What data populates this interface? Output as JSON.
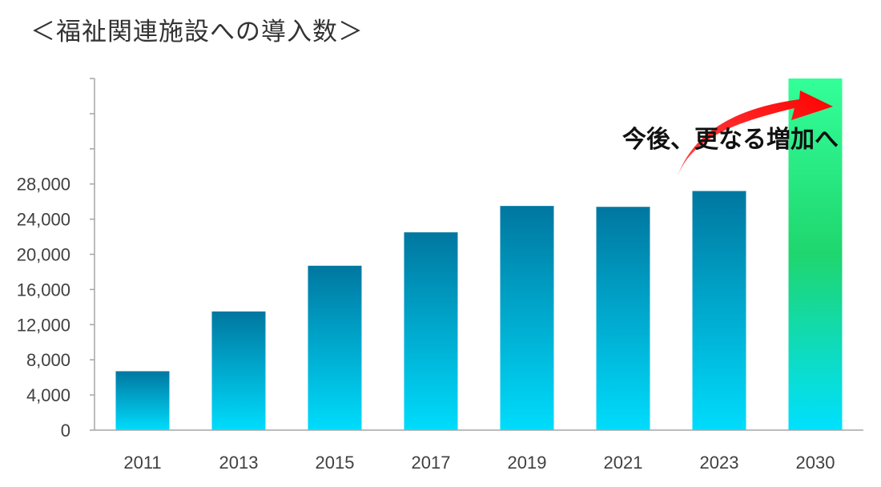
{
  "chart_data": {
    "type": "bar",
    "title": "＜福祉関連施設への導入数＞",
    "xlabel": "",
    "ylabel": "",
    "categories": [
      "2011",
      "2013",
      "2015",
      "2017",
      "2019",
      "2021",
      "2023",
      "2030"
    ],
    "values": [
      6700,
      13500,
      18700,
      22500,
      25500,
      25400,
      27200,
      40000
    ],
    "y_ticks": [
      "0",
      "4,000",
      "8,000",
      "12,000",
      "16,000",
      "20,000",
      "24,000",
      "28,000"
    ],
    "ylim": [
      0,
      40000
    ],
    "y_tick_step": 4000,
    "grid": false,
    "legend": "none",
    "annotation": "今後、更なる増加へ",
    "colors": {
      "bar_top": "#0077a0",
      "bar_bottom": "#00dcfc",
      "projection_top": "#33ff99",
      "projection_mid": "#1fd66e",
      "projection_bottom": "#00e0ff",
      "arrow_start": "#ff4a4a",
      "arrow_end": "#ff0000",
      "axis": "#a6a6a6"
    },
    "projected_category": "2030"
  }
}
